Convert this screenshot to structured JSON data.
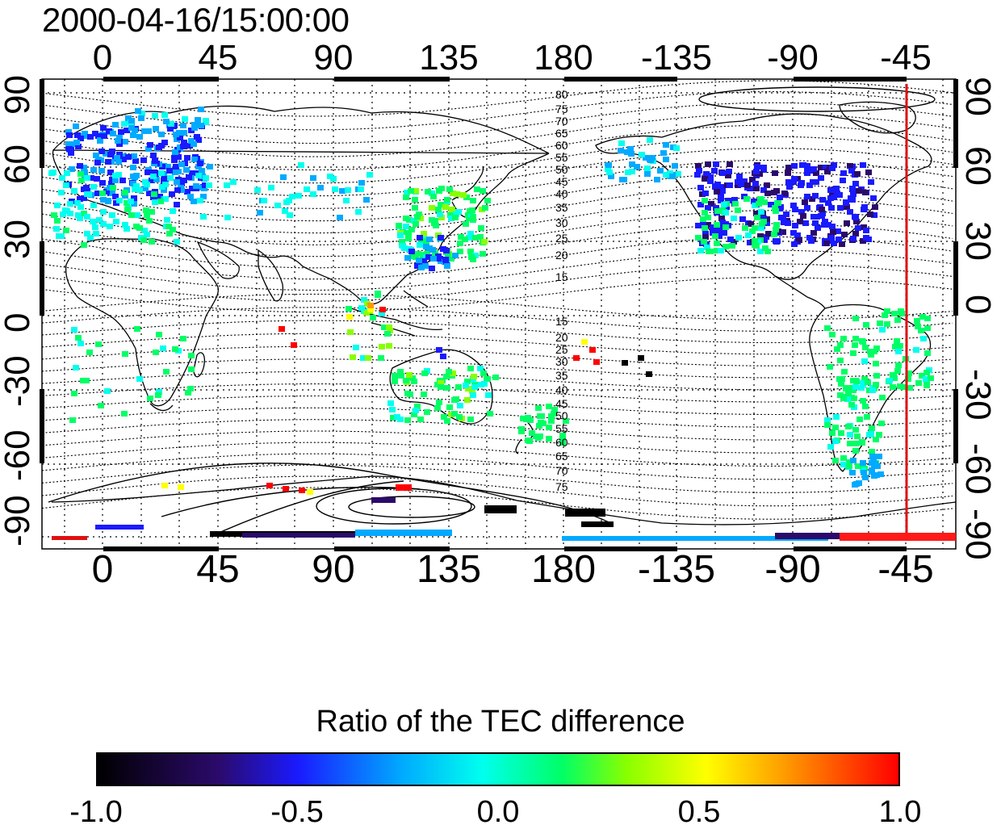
{
  "title": "2000-04-16/15:00:00",
  "axes": {
    "top_ticks": [
      "0",
      "45",
      "90",
      "135",
      "180",
      "-135",
      "-90",
      "-45"
    ],
    "bottom_ticks": [
      "0",
      "45",
      "90",
      "135",
      "180",
      "-135",
      "-90",
      "-45"
    ],
    "left_ticks": [
      "90",
      "60",
      "30",
      "0",
      "-30",
      "-60",
      "-90"
    ],
    "right_ticks": [
      "90",
      "60",
      "30",
      "0",
      "-30",
      "-60",
      "-90"
    ]
  },
  "contour_labels": {
    "north": [
      "80",
      "75",
      "70",
      "65",
      "60",
      "55",
      "50",
      "45",
      "40",
      "35",
      "30",
      "25",
      "20",
      "15"
    ],
    "south": [
      "15",
      "20",
      "25",
      "30",
      "35",
      "40",
      "45",
      "50",
      "55",
      "60",
      "65",
      "70",
      "75"
    ]
  },
  "marker_color": "#e01010",
  "colorbar": {
    "title": "Ratio of the TEC difference",
    "ticks": [
      "-1.0",
      "-0.5",
      "0.0",
      "0.5",
      "1.0"
    ],
    "colors": [
      "#000000",
      "#2b0a6a",
      "#1a1aff",
      "#00aaff",
      "#00ffee",
      "#00ff66",
      "#88ff00",
      "#ffff00",
      "#ff9900",
      "#ff0000"
    ]
  }
}
